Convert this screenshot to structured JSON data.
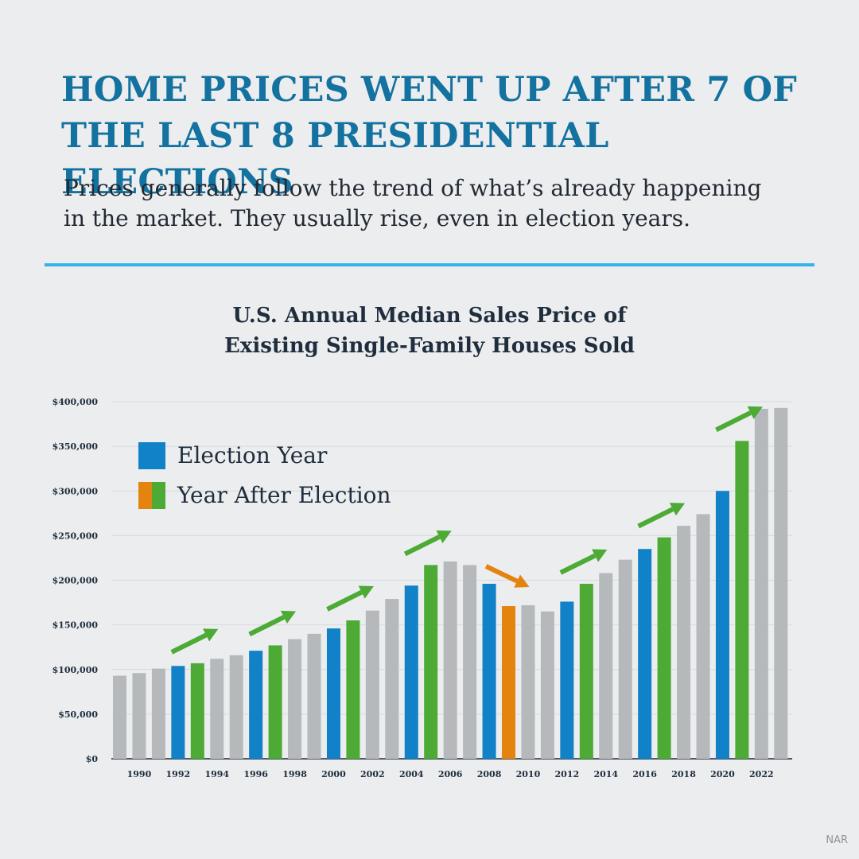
{
  "headline": {
    "line1": "HOME PRICES WENT UP AFTER 7 OF",
    "line2": "THE LAST 8 PRESIDENTIAL ELECTIONS"
  },
  "subheadline": {
    "line1": "Prices generally follow the trend of what’s already happening",
    "line2": "in the market. They usually rise, even in election years."
  },
  "source": "NAR",
  "colors": {
    "election_year": "#1181c8",
    "year_after_up": "#4caa35",
    "year_after_down": "#e5830f",
    "other_year": "#b5b9bc",
    "headline": "#13729f",
    "divider": "#38b3ea"
  },
  "chart_data": {
    "type": "bar",
    "title_line1": "U.S. Annual Median Sales Price of",
    "title_line2": "Existing Single-Family Houses Sold",
    "xlabel": "",
    "ylabel": "",
    "ylim": [
      0,
      400000
    ],
    "y_ticks": [
      "$0",
      "$50,000",
      "$100,000",
      "$150,000",
      "$200,000",
      "$250,000",
      "$300,000",
      "$350,000",
      "$400,000"
    ],
    "grid": true,
    "legend_position": "top-left",
    "legend": [
      {
        "label": "Election Year",
        "colors": [
          "#1181c8"
        ]
      },
      {
        "label": "Year After Election",
        "colors": [
          "#e5830f",
          "#4caa35"
        ]
      }
    ],
    "x_tick_labels": [
      "1990",
      "1992",
      "1994",
      "1996",
      "1998",
      "2000",
      "2002",
      "2004",
      "2006",
      "2008",
      "2010",
      "2012",
      "2014",
      "2016",
      "2018",
      "2020",
      "2022"
    ],
    "categories": [
      1989,
      1990,
      1991,
      1992,
      1993,
      1994,
      1995,
      1996,
      1997,
      1998,
      1999,
      2000,
      2001,
      2002,
      2003,
      2004,
      2005,
      2006,
      2007,
      2008,
      2009,
      2010,
      2011,
      2012,
      2013,
      2014,
      2015,
      2016,
      2017,
      2018,
      2019,
      2020,
      2021,
      2022,
      2023
    ],
    "values": [
      93000,
      96000,
      101000,
      104000,
      107000,
      112000,
      116000,
      121000,
      127000,
      134000,
      140000,
      146000,
      155000,
      166000,
      179000,
      194000,
      217000,
      221000,
      217000,
      196000,
      171000,
      172000,
      165000,
      176000,
      196000,
      208000,
      223000,
      235000,
      248000,
      261000,
      274000,
      300000,
      356000,
      392000,
      393000
    ],
    "bar_types": [
      "other",
      "other",
      "other",
      "election",
      "after-up",
      "other",
      "other",
      "election",
      "after-up",
      "other",
      "other",
      "election",
      "after-up",
      "other",
      "other",
      "election",
      "after-up",
      "other",
      "other",
      "election",
      "after-down",
      "other",
      "other",
      "election",
      "after-up",
      "other",
      "other",
      "election",
      "after-up",
      "other",
      "other",
      "election",
      "after-up",
      "other",
      "other"
    ]
  }
}
